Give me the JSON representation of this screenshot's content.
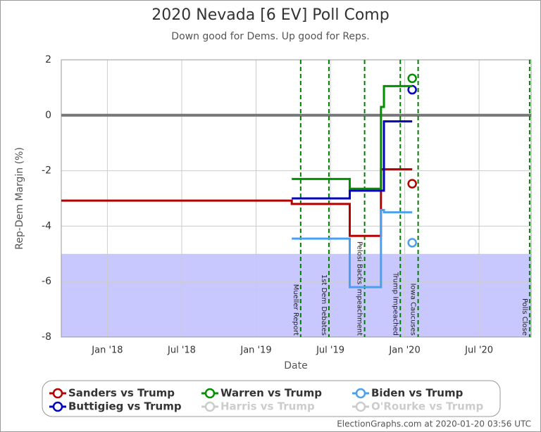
{
  "chart_data": {
    "type": "step",
    "title": "2020 Nevada [6 EV] Poll Comp",
    "subtitle": "Down good for Dems. Up good for Reps.",
    "x_label": "Date",
    "y_label": "Rep-Dem Margin (%)",
    "footer": "ElectionGraphs.com at 2020-01-20 03:56 UTC",
    "xlim": [
      2017.69,
      2020.85
    ],
    "ylim": [
      -8,
      2
    ],
    "xticks": [
      {
        "value": 2018.0,
        "label": "Jan '18"
      },
      {
        "value": 2018.5,
        "label": "Jul '18"
      },
      {
        "value": 2019.0,
        "label": "Jan '19"
      },
      {
        "value": 2019.5,
        "label": "Jul '19"
      },
      {
        "value": 2020.0,
        "label": "Jan '20"
      },
      {
        "value": 2020.5,
        "label": "Jul '20"
      }
    ],
    "yticks": [
      2,
      0,
      -2,
      -4,
      -6,
      -8
    ],
    "grid": true,
    "reference_line": 0,
    "shade_below": -5,
    "shade_color": "#c8c8ff",
    "events": [
      {
        "label": "Mueller Report",
        "x": 2019.3
      },
      {
        "label": "1st Dem Debates",
        "x": 2019.49
      },
      {
        "label": "Pelosi Backs Impeachment",
        "x": 2019.73
      },
      {
        "label": "Trump Impeached",
        "x": 2019.97
      },
      {
        "label": "Iowa Caucuses",
        "x": 2020.09
      },
      {
        "label": "Polls Close",
        "x": 2020.84
      }
    ],
    "series": [
      {
        "name": "Sanders vs Trump",
        "color": "#b40000",
        "x": [
          2017.69,
          2019.24,
          2019.63,
          2019.84,
          2020.05
        ],
        "values": [
          -3.08,
          -3.2,
          -4.35,
          -1.95,
          -2.47
        ]
      },
      {
        "name": "Buttigieg vs Trump",
        "color": "#0000c0",
        "x": [
          2019.24,
          2019.63,
          2019.86,
          2020.05
        ],
        "values": [
          -3.0,
          -2.72,
          -0.22,
          0.92
        ]
      },
      {
        "name": "Warren vs Trump",
        "color": "#009000",
        "x": [
          2019.24,
          2019.63,
          2019.84,
          2019.86,
          2020.05
        ],
        "values": [
          -2.3,
          -2.65,
          0.3,
          1.05,
          1.33
        ]
      },
      {
        "name": "Harris vs Trump",
        "color": "#cccccc",
        "x": [],
        "values": []
      },
      {
        "name": "Biden vs Trump",
        "color": "#4aa0f0",
        "x": [
          2019.24,
          2019.63,
          2019.84,
          2019.86,
          2020.05
        ],
        "values": [
          -4.45,
          -6.2,
          -3.42,
          -3.5,
          -4.6
        ]
      },
      {
        "name": "O'Rourke vs Trump",
        "color": "#cccccc",
        "x": [],
        "values": []
      }
    ]
  }
}
